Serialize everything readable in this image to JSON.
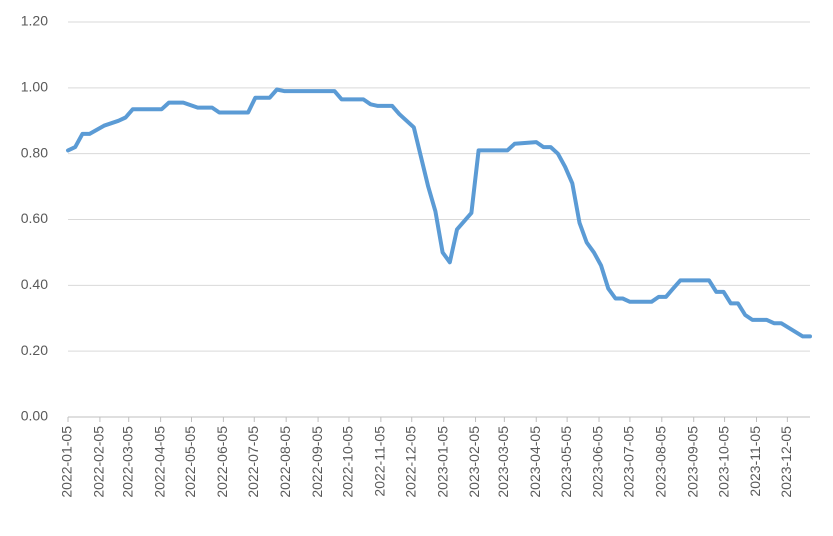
{
  "chart_data": {
    "type": "line",
    "x": [
      "2022-01-05",
      "2022-01-12",
      "2022-01-19",
      "2022-01-26",
      "2022-02-09",
      "2022-02-23",
      "2022-03-02",
      "2022-03-09",
      "2022-04-06",
      "2022-04-13",
      "2022-04-27",
      "2022-05-11",
      "2022-05-25",
      "2022-06-01",
      "2022-06-29",
      "2022-07-06",
      "2022-07-20",
      "2022-07-27",
      "2022-08-03",
      "2022-09-21",
      "2022-09-28",
      "2022-10-19",
      "2022-10-26",
      "2022-11-02",
      "2022-11-16",
      "2022-11-23",
      "2022-12-07",
      "2022-12-14",
      "2022-12-21",
      "2022-12-28",
      "2023-01-04",
      "2023-01-11",
      "2023-01-18",
      "2023-02-01",
      "2023-02-08",
      "2023-03-08",
      "2023-03-15",
      "2023-04-05",
      "2023-04-12",
      "2023-04-19",
      "2023-04-26",
      "2023-05-03",
      "2023-05-10",
      "2023-05-17",
      "2023-05-24",
      "2023-05-31",
      "2023-06-07",
      "2023-06-14",
      "2023-06-21",
      "2023-06-28",
      "2023-07-05",
      "2023-07-26",
      "2023-08-02",
      "2023-08-09",
      "2023-08-16",
      "2023-08-23",
      "2023-09-20",
      "2023-09-27",
      "2023-10-04",
      "2023-10-11",
      "2023-10-18",
      "2023-10-25",
      "2023-11-01",
      "2023-11-15",
      "2023-11-22",
      "2023-11-29",
      "2023-12-20",
      "2023-12-27"
    ],
    "series": [
      {
        "color": "#5b9bd5",
        "values": [
          0.81,
          0.82,
          0.86,
          0.86,
          0.885,
          0.9,
          0.91,
          0.935,
          0.935,
          0.955,
          0.955,
          0.94,
          0.94,
          0.925,
          0.925,
          0.97,
          0.97,
          0.995,
          0.99,
          0.99,
          0.965,
          0.965,
          0.95,
          0.945,
          0.945,
          0.92,
          0.88,
          0.79,
          0.7,
          0.625,
          0.5,
          0.47,
          0.57,
          0.62,
          0.81,
          0.81,
          0.83,
          0.835,
          0.82,
          0.82,
          0.8,
          0.76,
          0.71,
          0.59,
          0.53,
          0.5,
          0.46,
          0.39,
          0.36,
          0.36,
          0.35,
          0.35,
          0.365,
          0.365,
          0.39,
          0.415,
          0.415,
          0.38,
          0.38,
          0.345,
          0.345,
          0.31,
          0.295,
          0.295,
          0.285,
          0.285,
          0.245,
          0.245
        ]
      }
    ],
    "xlim": [
      "2022-01-05",
      "2023-12-27"
    ],
    "xticks": [
      "2022-01-05",
      "2022-02-05",
      "2022-03-05",
      "2022-04-05",
      "2022-05-05",
      "2022-06-05",
      "2022-07-05",
      "2022-08-05",
      "2022-09-05",
      "2022-10-05",
      "2022-11-05",
      "2022-12-05",
      "2023-01-05",
      "2023-02-05",
      "2023-03-05",
      "2023-04-05",
      "2023-05-05",
      "2023-06-05",
      "2023-07-05",
      "2023-08-05",
      "2023-09-05",
      "2023-10-05",
      "2023-11-05",
      "2023-12-05"
    ],
    "ylim": [
      0,
      1.2
    ],
    "yticks": [
      {
        "value": 0,
        "label": "0.00"
      },
      {
        "value": 0.2,
        "label": "0.20"
      },
      {
        "value": 0.4,
        "label": "0.40"
      },
      {
        "value": 0.6,
        "label": "0.60"
      },
      {
        "value": 0.8,
        "label": "0.80"
      },
      {
        "value": 1,
        "label": "1.00"
      },
      {
        "value": 1.2,
        "label": "1.20"
      }
    ],
    "grid": true
  }
}
